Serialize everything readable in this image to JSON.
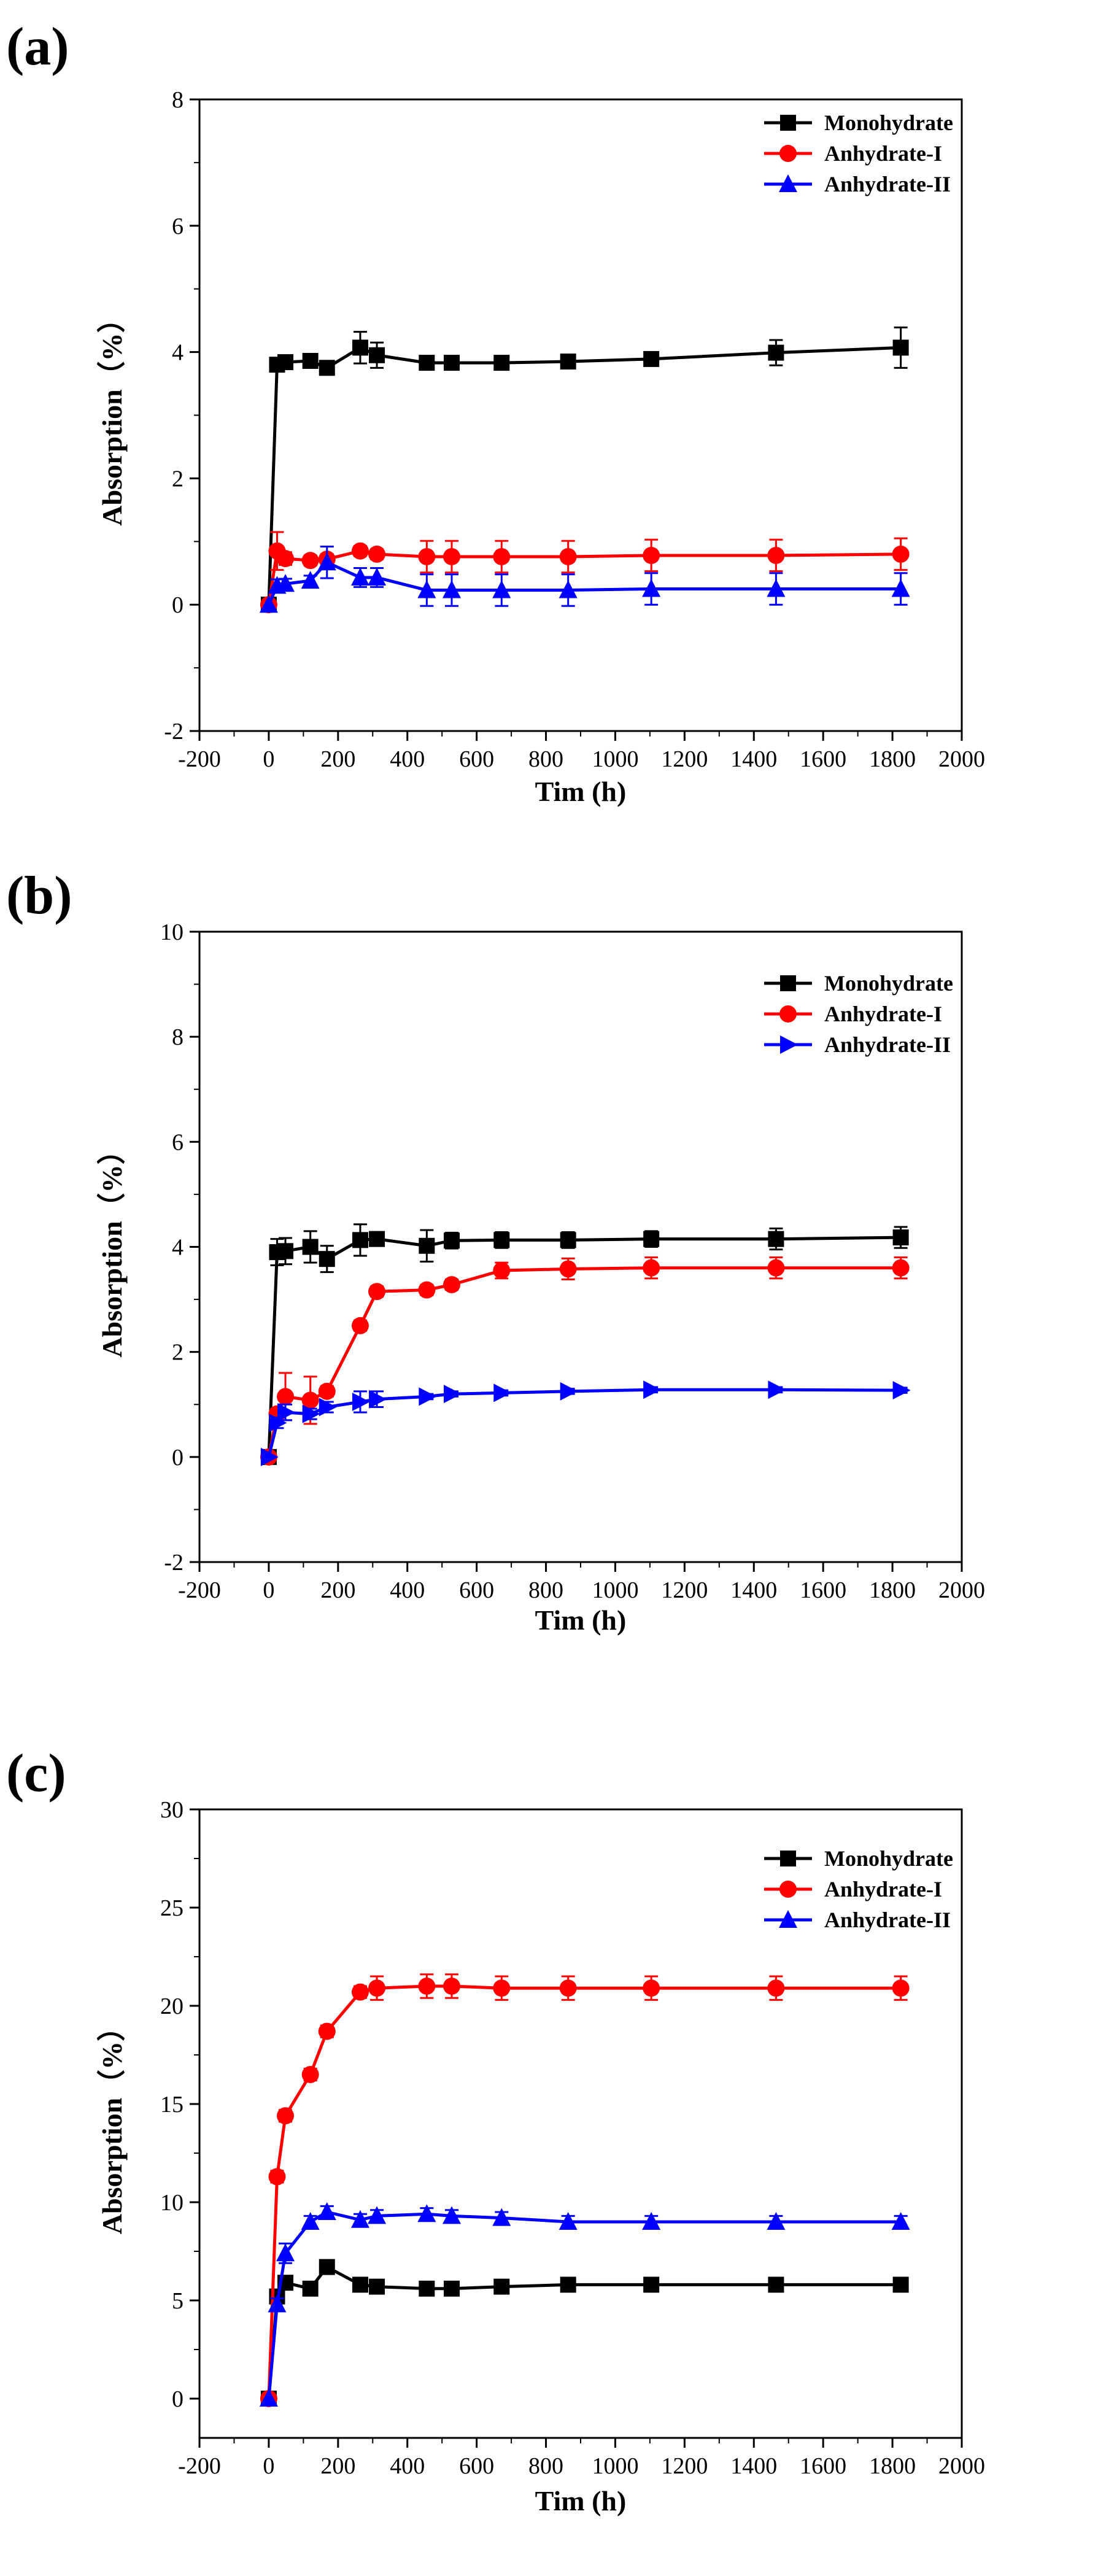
{
  "figure": {
    "colors": {
      "Monohydrate": "#000000",
      "Anhydrate-I": "#ff0000",
      "Anhydrate-II": "#0000ff"
    }
  },
  "chart_data": [
    {
      "panel": "(a)",
      "type": "line",
      "title": "",
      "xlabel": "Tim (h)",
      "ylabel": "Absorption（%）",
      "xlim": [
        -200,
        2000
      ],
      "ylim": [
        -2,
        8
      ],
      "xticks": [
        -200,
        0,
        200,
        400,
        600,
        800,
        1000,
        1200,
        1400,
        1600,
        1800,
        2000
      ],
      "yticks": [
        -2,
        0,
        2,
        4,
        6,
        8
      ],
      "legend_position": "top-right",
      "series": [
        {
          "name": "Monohydrate",
          "color": "#000000",
          "marker": "square",
          "x": [
            0,
            24,
            48,
            120,
            168,
            264,
            312,
            456,
            528,
            672,
            864,
            1104,
            1464,
            1824
          ],
          "y": [
            0,
            3.8,
            3.84,
            3.86,
            3.75,
            4.07,
            3.95,
            3.83,
            3.83,
            3.83,
            3.85,
            3.89,
            3.99,
            4.07
          ],
          "err": [
            0,
            0.05,
            0.04,
            0.05,
            0.08,
            0.25,
            0.2,
            0.05,
            0.05,
            0.05,
            0.04,
            0.05,
            0.2,
            0.32
          ]
        },
        {
          "name": "Anhydrate-I",
          "color": "#ff0000",
          "marker": "circle",
          "x": [
            0,
            24,
            48,
            120,
            168,
            264,
            312,
            456,
            528,
            672,
            864,
            1104,
            1464,
            1824
          ],
          "y": [
            0,
            0.85,
            0.73,
            0.7,
            0.72,
            0.85,
            0.8,
            0.76,
            0.76,
            0.76,
            0.76,
            0.78,
            0.78,
            0.8
          ],
          "err": [
            0,
            0.3,
            0.1,
            0.08,
            0.08,
            0.08,
            0.08,
            0.25,
            0.25,
            0.25,
            0.25,
            0.25,
            0.25,
            0.25
          ]
        },
        {
          "name": "Anhydrate-II",
          "color": "#0000ff",
          "marker": "triangle-up",
          "x": [
            0,
            24,
            48,
            120,
            168,
            264,
            312,
            456,
            528,
            672,
            864,
            1104,
            1464,
            1824
          ],
          "y": [
            0,
            0.3,
            0.33,
            0.38,
            0.67,
            0.43,
            0.43,
            0.23,
            0.23,
            0.23,
            0.23,
            0.25,
            0.25,
            0.25
          ],
          "err": [
            0,
            0.1,
            0.08,
            0.08,
            0.25,
            0.15,
            0.15,
            0.25,
            0.25,
            0.25,
            0.25,
            0.25,
            0.25,
            0.25
          ]
        }
      ]
    },
    {
      "panel": "(b)",
      "type": "line",
      "title": "",
      "xlabel": "Tim (h)",
      "ylabel": "Absorption（%）",
      "xlim": [
        -200,
        2000
      ],
      "ylim": [
        -2,
        10
      ],
      "xticks": [
        -200,
        0,
        200,
        400,
        600,
        800,
        1000,
        1200,
        1400,
        1600,
        1800,
        2000
      ],
      "yticks": [
        -2,
        0,
        2,
        4,
        6,
        8,
        10
      ],
      "legend_position": "top-right",
      "series": [
        {
          "name": "Monohydrate",
          "color": "#000000",
          "marker": "square",
          "x": [
            0,
            24,
            48,
            120,
            168,
            264,
            312,
            456,
            528,
            672,
            864,
            1104,
            1464,
            1824
          ],
          "y": [
            0,
            3.9,
            3.92,
            4.0,
            3.77,
            4.13,
            4.15,
            4.02,
            4.12,
            4.13,
            4.13,
            4.15,
            4.15,
            4.18
          ],
          "err": [
            0,
            0.25,
            0.25,
            0.3,
            0.25,
            0.3,
            0.1,
            0.3,
            0.15,
            0.15,
            0.15,
            0.15,
            0.2,
            0.2
          ]
        },
        {
          "name": "Anhydrate-I",
          "color": "#ff0000",
          "marker": "circle",
          "x": [
            0,
            24,
            48,
            120,
            168,
            264,
            312,
            456,
            528,
            672,
            864,
            1104,
            1464,
            1824
          ],
          "y": [
            0,
            0.82,
            1.15,
            1.08,
            1.25,
            2.5,
            3.15,
            3.18,
            3.28,
            3.55,
            3.58,
            3.6,
            3.6,
            3.6
          ],
          "err": [
            0,
            0.1,
            0.45,
            0.45,
            0.1,
            0.1,
            0.1,
            0.1,
            0.1,
            0.15,
            0.2,
            0.2,
            0.2,
            0.2
          ]
        },
        {
          "name": "Anhydrate-II",
          "color": "#0000ff",
          "marker": "triangle-right",
          "x": [
            0,
            24,
            48,
            120,
            168,
            264,
            312,
            456,
            528,
            672,
            864,
            1104,
            1464,
            1824
          ],
          "y": [
            0,
            0.65,
            0.85,
            0.82,
            0.95,
            1.05,
            1.1,
            1.15,
            1.2,
            1.22,
            1.25,
            1.28,
            1.28,
            1.27
          ],
          "err": [
            0,
            0.1,
            0.15,
            0.1,
            0.1,
            0.2,
            0.15,
            0.05,
            0.05,
            0.05,
            0.05,
            0.05,
            0.05,
            0.05
          ]
        }
      ]
    },
    {
      "panel": "(c)",
      "type": "line",
      "title": "",
      "xlabel": "Tim (h)",
      "ylabel": "Absorption（%）",
      "xlim": [
        -200,
        2000
      ],
      "ylim": [
        -2,
        30
      ],
      "xticks": [
        -200,
        0,
        200,
        400,
        600,
        800,
        1000,
        1200,
        1400,
        1600,
        1800,
        2000
      ],
      "yticks": [
        0,
        5,
        10,
        15,
        20,
        25,
        30
      ],
      "legend_position": "top-right",
      "series": [
        {
          "name": "Monohydrate",
          "color": "#000000",
          "marker": "square",
          "x": [
            0,
            24,
            48,
            120,
            168,
            264,
            312,
            456,
            528,
            672,
            864,
            1104,
            1464,
            1824
          ],
          "y": [
            0,
            5.2,
            5.9,
            5.6,
            6.7,
            5.8,
            5.7,
            5.6,
            5.6,
            5.7,
            5.8,
            5.8,
            5.8,
            5.8
          ],
          "err": [
            0,
            0.3,
            0.3,
            0.3,
            0.3,
            0.3,
            0.3,
            0.3,
            0.3,
            0.3,
            0.3,
            0.3,
            0.3,
            0.3
          ]
        },
        {
          "name": "Anhydrate-I",
          "color": "#ff0000",
          "marker": "circle",
          "x": [
            0,
            24,
            48,
            120,
            168,
            264,
            312,
            456,
            528,
            672,
            864,
            1104,
            1464,
            1824
          ],
          "y": [
            0,
            11.3,
            14.4,
            16.5,
            18.7,
            20.7,
            20.9,
            21.0,
            21.0,
            20.9,
            20.9,
            20.9,
            20.9,
            20.9
          ],
          "err": [
            0,
            0.3,
            0.3,
            0.3,
            0.3,
            0.3,
            0.6,
            0.6,
            0.6,
            0.6,
            0.6,
            0.6,
            0.6,
            0.6
          ]
        },
        {
          "name": "Anhydrate-II",
          "color": "#0000ff",
          "marker": "triangle-up",
          "x": [
            0,
            24,
            48,
            120,
            168,
            264,
            312,
            456,
            528,
            672,
            864,
            1104,
            1464,
            1824
          ],
          "y": [
            0,
            4.8,
            7.4,
            9.0,
            9.5,
            9.1,
            9.3,
            9.4,
            9.3,
            9.2,
            9.0,
            9.0,
            9.0,
            9.0
          ],
          "err": [
            0,
            0.3,
            0.5,
            0.3,
            0.3,
            0.3,
            0.3,
            0.3,
            0.3,
            0.3,
            0.3,
            0.3,
            0.3,
            0.3
          ]
        }
      ]
    }
  ]
}
